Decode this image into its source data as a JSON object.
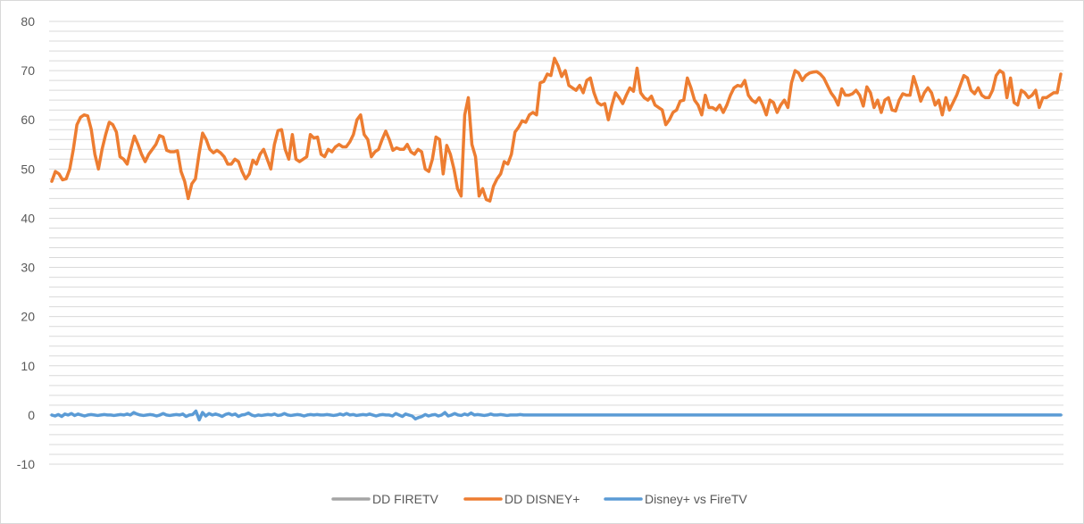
{
  "chart_data": {
    "type": "line",
    "title": "",
    "xlabel": "",
    "ylabel": "",
    "ylim": [
      -10,
      80
    ],
    "yticks": [
      80,
      70,
      60,
      50,
      40,
      30,
      20,
      10,
      0,
      -10
    ],
    "grid": true,
    "legend_position": "bottom",
    "series": [
      {
        "name": "DD FIRETV",
        "color": "#a5a5a5",
        "values": []
      },
      {
        "name": "DD DISNEY+",
        "color": "#ed7d31",
        "values": [
          47.5,
          49.5,
          49.0,
          47.8,
          48.0,
          50.0,
          54.0,
          59.0,
          60.5,
          61.0,
          60.8,
          58.0,
          53.0,
          50.0,
          54.0,
          57.0,
          59.5,
          59.0,
          57.5,
          52.5,
          52.0,
          51.0,
          54.0,
          56.7,
          55.0,
          53.0,
          51.5,
          53.0,
          54.0,
          55.0,
          56.8,
          56.5,
          53.8,
          53.5,
          53.5,
          53.7,
          49.5,
          47.5,
          44.0,
          47.0,
          48.0,
          53.0,
          57.3,
          56.0,
          54.0,
          53.3,
          53.8,
          53.3,
          52.5,
          51.0,
          51.0,
          52.0,
          51.5,
          49.5,
          48.0,
          49.0,
          51.8,
          51.0,
          53.0,
          54.0,
          52.0,
          50.0,
          55.0,
          57.8,
          58.0,
          54.0,
          52.0,
          57.0,
          52.0,
          51.5,
          52.0,
          52.5,
          57.0,
          56.3,
          56.5,
          53.0,
          52.5,
          54.0,
          53.5,
          54.5,
          55.0,
          54.5,
          54.5,
          55.5,
          57.0,
          60.0,
          61.0,
          57.0,
          56.0,
          52.5,
          53.5,
          54.0,
          56.0,
          57.7,
          56.0,
          53.8,
          54.3,
          54.0,
          54.0,
          55.0,
          53.5,
          53.0,
          54.0,
          53.5,
          50.0,
          49.5,
          52.0,
          56.5,
          56.0,
          49.0,
          54.8,
          53.0,
          50.0,
          46.0,
          44.5,
          61.0,
          64.5,
          55.0,
          52.5,
          44.5,
          46.0,
          43.8,
          43.5,
          46.5,
          48.0,
          49.0,
          51.5,
          51.0,
          53.0,
          57.5,
          58.5,
          59.8,
          59.5,
          61.0,
          61.5,
          61.0,
          67.5,
          67.8,
          69.3,
          69.0,
          72.5,
          71.0,
          68.8,
          70.0,
          67.0,
          66.5,
          66.0,
          67.0,
          65.5,
          68.0,
          68.5,
          65.5,
          63.5,
          63.0,
          63.3,
          60.0,
          63.0,
          65.5,
          64.5,
          63.3,
          65.0,
          66.5,
          65.8,
          70.5,
          65.5,
          64.5,
          64.0,
          64.8,
          63.0,
          62.5,
          62.0,
          59.0,
          60.0,
          61.5,
          62.0,
          63.8,
          64.0,
          68.5,
          66.5,
          64.0,
          63.0,
          61.0,
          65.0,
          62.5,
          62.5,
          62.0,
          63.0,
          61.5,
          63.0,
          65.0,
          66.5,
          67.0,
          66.8,
          68.0,
          65.0,
          64.0,
          63.5,
          64.5,
          63.0,
          61.0,
          64.0,
          63.5,
          61.5,
          63.0,
          64.0,
          62.5,
          67.5,
          70.0,
          69.5,
          68.0,
          69.0,
          69.5,
          69.7,
          69.8,
          69.3,
          68.5,
          67.0,
          65.5,
          64.5,
          63.0,
          66.3,
          65.0,
          65.0,
          65.3,
          66.0,
          65.0,
          62.8,
          66.7,
          65.5,
          62.5,
          64.0,
          61.5,
          64.0,
          64.5,
          62.0,
          61.8,
          64.0,
          65.3,
          65.0,
          65.0,
          68.8,
          66.5,
          63.8,
          65.5,
          66.5,
          65.5,
          63.0,
          64.0,
          61.0,
          64.5,
          62.0,
          63.5,
          65.0,
          67.0,
          69.0,
          68.5,
          66.0,
          65.3,
          66.5,
          65.0,
          64.5,
          64.5,
          66.0,
          69.0,
          70.0,
          69.5,
          64.5,
          68.5,
          63.5,
          63.0,
          66.0,
          65.5,
          64.5,
          65.0,
          66.0,
          62.5,
          64.5,
          64.5,
          65.0,
          65.5,
          65.5,
          69.3
        ]
      },
      {
        "name": "Disney+ vs FireTV",
        "color": "#5b9bd5",
        "values": [
          0,
          -0.2,
          0.1,
          -0.3,
          0.2,
          0,
          0.3,
          -0.1,
          0.2,
          0,
          -0.2,
          0,
          0.1,
          0,
          -0.1,
          0,
          0.1,
          0,
          0,
          -0.1,
          0,
          0.1,
          0,
          0.2,
          0,
          0.5,
          0.2,
          0,
          -0.1,
          0,
          0.1,
          0,
          -0.2,
          0,
          0.3,
          0,
          -0.1,
          0,
          0.1,
          0,
          0.2,
          -0.3,
          0,
          0.1,
          0.8,
          -1.0,
          0.5,
          -0.2,
          0.3,
          0,
          0.2,
          0,
          -0.3,
          0.1,
          0.3,
          0,
          0.2,
          -0.3,
          0,
          0.1,
          0.4,
          0,
          -0.2,
          0,
          -0.1,
          0,
          0.1,
          0,
          0.2,
          -0.1,
          0,
          0.3,
          0,
          -0.1,
          0,
          0.1,
          0,
          -0.2,
          0,
          0.1,
          0,
          0.1,
          0,
          0,
          0.1,
          0,
          -0.1,
          0,
          0.2,
          0,
          0.3,
          0,
          0.1,
          -0.1,
          0,
          0.1,
          0,
          0.2,
          0,
          -0.2,
          0,
          0.1,
          0,
          0,
          -0.2,
          0.3,
          0,
          -0.3,
          0.2,
          0,
          -0.2,
          -0.8,
          -0.5,
          -0.3,
          0.1,
          -0.2,
          0,
          0.1,
          -0.2,
          0,
          0.5,
          -0.2,
          0,
          0.3,
          0,
          -0.1,
          0.2,
          0,
          0.4,
          0,
          0.1,
          0,
          -0.1,
          0,
          0.2,
          0,
          0,
          0.1,
          0,
          -0.1,
          0,
          0,
          0,
          0.1,
          0,
          0,
          0,
          0,
          0,
          0,
          0,
          0,
          0,
          0,
          0,
          0,
          0,
          0,
          0,
          0,
          0,
          0,
          0,
          0,
          0,
          0,
          0,
          0,
          0,
          0,
          0,
          0,
          0,
          0,
          0,
          0,
          0,
          0,
          0,
          0,
          0,
          0,
          0,
          0,
          0,
          0,
          0,
          0,
          0,
          0,
          0,
          0,
          0,
          0,
          0,
          0,
          0,
          0,
          0,
          0,
          0,
          0,
          0,
          0,
          0,
          0,
          0,
          0,
          0,
          0,
          0,
          0,
          0,
          0,
          0,
          0,
          0,
          0,
          0,
          0,
          0,
          0,
          0,
          0,
          0,
          0,
          0,
          0,
          0,
          0,
          0,
          0,
          0,
          0,
          0,
          0,
          0,
          0,
          0,
          0,
          0,
          0,
          0,
          0,
          0,
          0,
          0,
          0,
          0,
          0,
          0,
          0,
          0,
          0,
          0,
          0,
          0,
          0,
          0,
          0,
          0,
          0,
          0,
          0,
          0,
          0,
          0,
          0,
          0,
          0,
          0,
          0,
          0,
          0,
          0,
          0,
          0,
          0,
          0,
          0,
          0,
          0,
          0,
          0,
          0,
          0,
          0,
          0,
          0,
          0,
          0,
          0,
          0,
          0,
          0,
          0,
          0,
          0,
          0,
          0,
          0,
          0,
          0,
          0,
          0,
          0,
          0,
          0,
          0
        ]
      }
    ]
  }
}
